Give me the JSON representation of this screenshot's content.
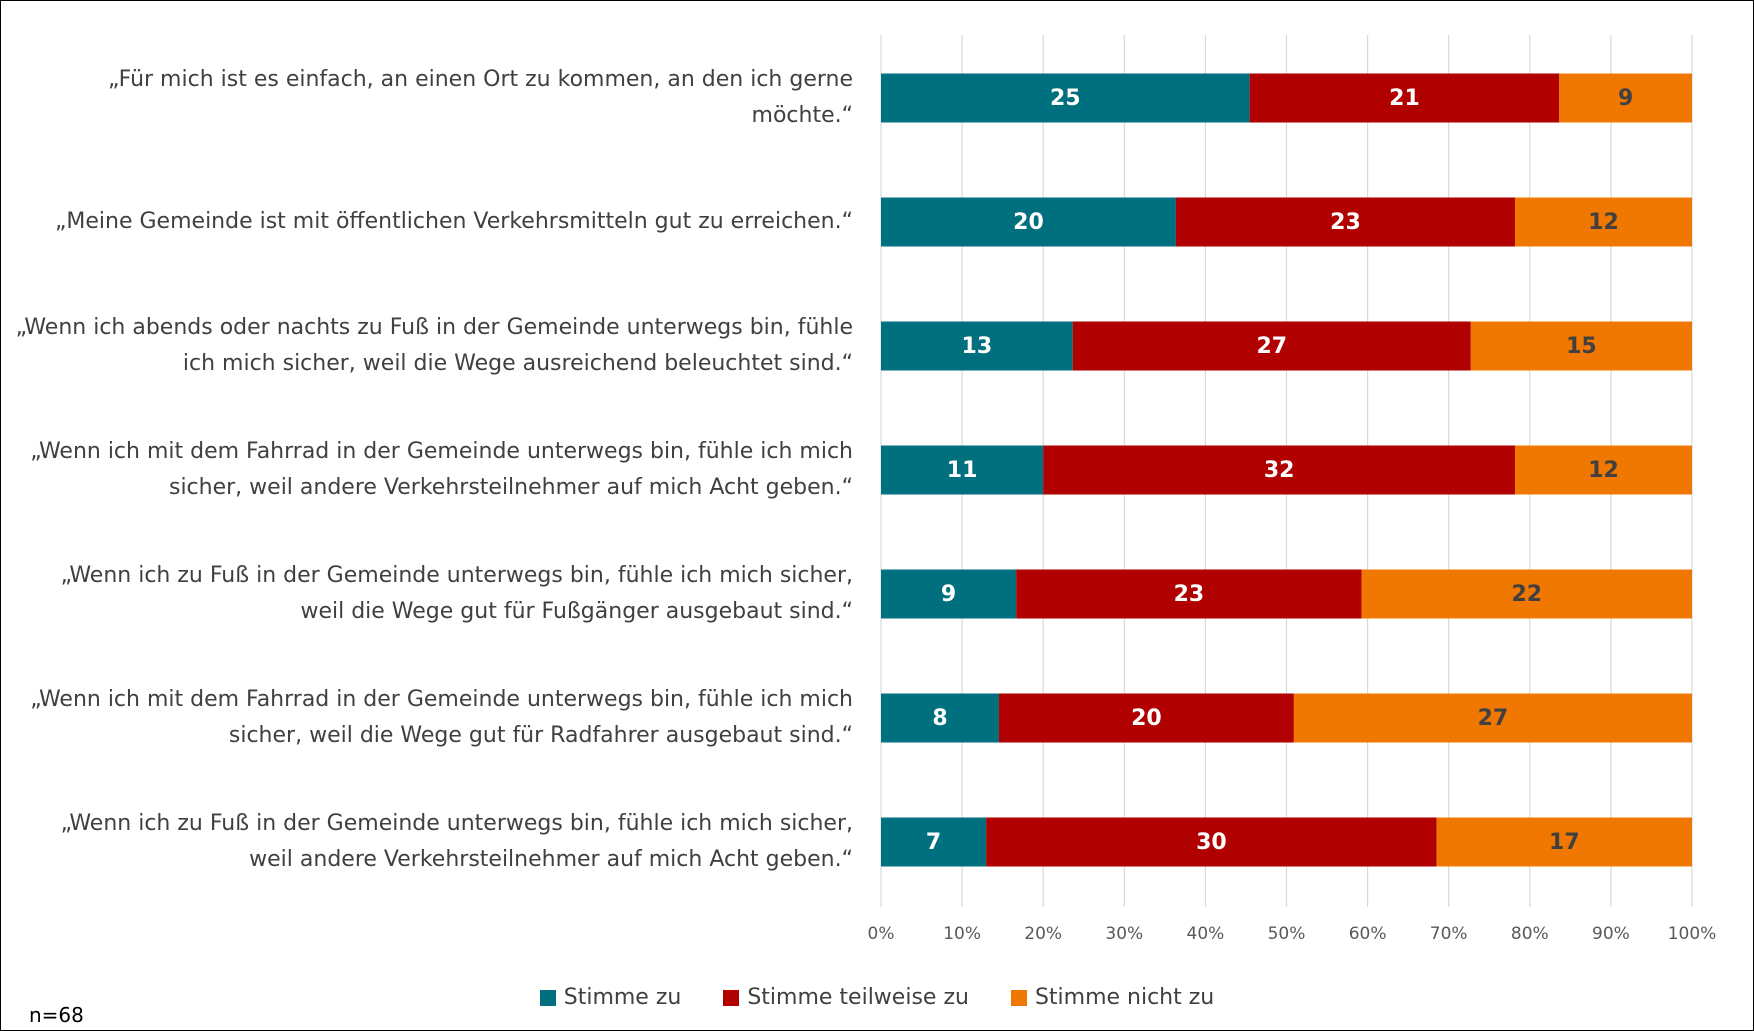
{
  "chart_data": {
    "type": "bar",
    "orientation": "horizontal",
    "stacked": "percent",
    "categories": [
      "„Für mich ist es einfach, an einen Ort zu kommen, an den ich gerne möchte.“",
      "„Meine Gemeinde ist mit öffentlichen Verkehrsmitteln gut zu erreichen.“",
      "„Wenn ich abends oder nachts zu Fuß in der Gemeinde unterwegs bin, fühle ich mich sicher, weil die Wege ausreichend beleuchtet sind.“",
      "„Wenn ich mit dem Fahrrad in der Gemeinde unterwegs bin, fühle ich mich sicher, weil andere Verkehrsteilnehmer auf mich Acht geben.“",
      "„Wenn ich zu Fuß in der Gemeinde unterwegs bin, fühle ich mich sicher, weil die Wege gut für Fußgänger ausgebaut sind.“",
      "„Wenn ich mit dem Fahrrad in der Gemeinde unterwegs bin, fühle ich mich sicher, weil die Wege gut für Radfahrer ausgebaut sind.“",
      "„Wenn ich zu Fuß in der Gemeinde unterwegs bin, fühle ich mich sicher, weil andere Verkehrsteilnehmer  auf mich Acht geben.“"
    ],
    "series": [
      {
        "name": "Stimme zu",
        "color": "#00707f",
        "label_color": "#ffffff",
        "values": [
          25,
          20,
          13,
          11,
          9,
          8,
          7
        ]
      },
      {
        "name": "Stimme teilweise zu",
        "color": "#b00000",
        "label_color": "#ffffff",
        "values": [
          21,
          23,
          27,
          32,
          23,
          20,
          30
        ]
      },
      {
        "name": "Stimme nicht zu",
        "color": "#f07800",
        "label_color": "#404040",
        "values": [
          9,
          12,
          15,
          12,
          22,
          27,
          17
        ]
      }
    ],
    "xlim": [
      0,
      100
    ],
    "xticks": [
      {
        "value": 0,
        "label": "0%"
      },
      {
        "value": 10,
        "label": "10%"
      },
      {
        "value": 20,
        "label": "20%"
      },
      {
        "value": 30,
        "label": "30%"
      },
      {
        "value": 40,
        "label": "40%"
      },
      {
        "value": 50,
        "label": "50%"
      },
      {
        "value": 60,
        "label": "60%"
      },
      {
        "value": 70,
        "label": "70%"
      },
      {
        "value": 80,
        "label": "80%"
      },
      {
        "value": 90,
        "label": "90%"
      },
      {
        "value": 100,
        "label": "100%"
      }
    ],
    "grid": true,
    "legend": "bottom",
    "note": "n=68"
  }
}
